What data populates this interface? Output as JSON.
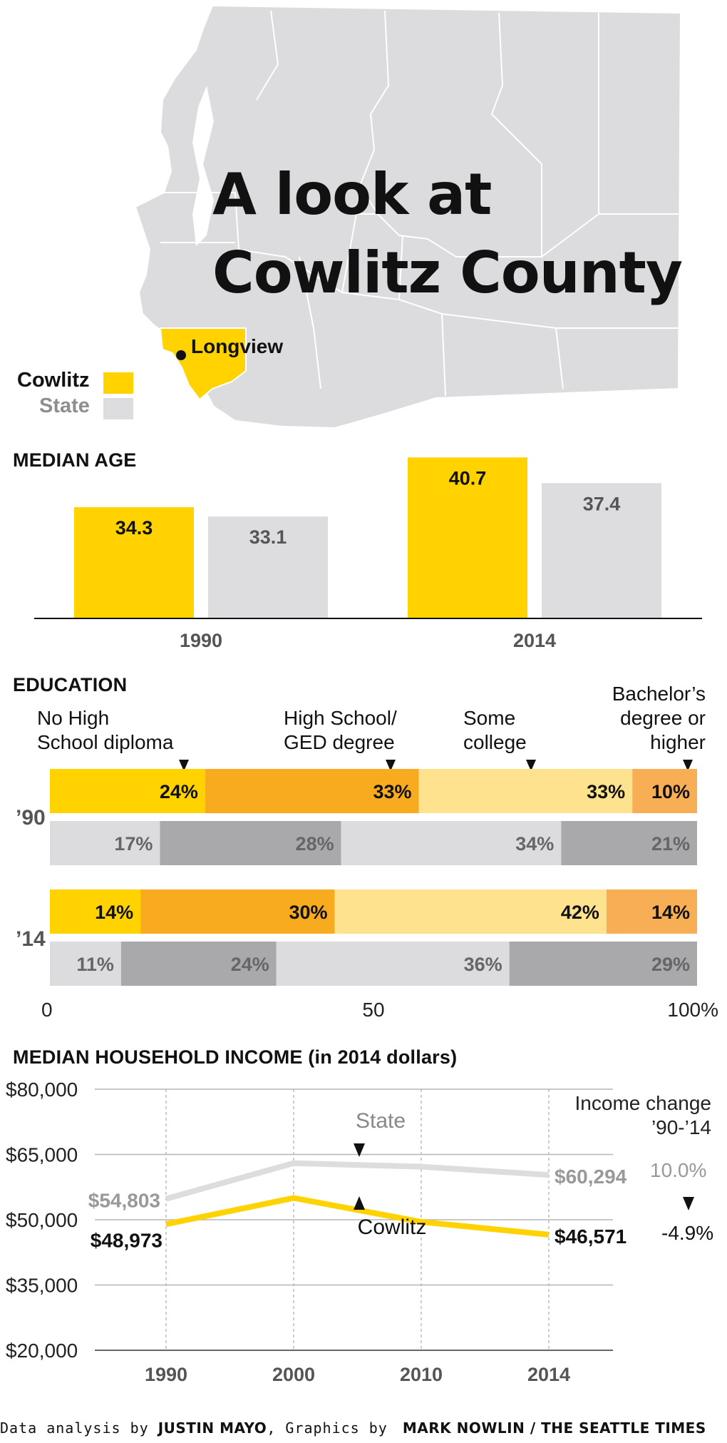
{
  "header": {
    "title_line1": "A look at",
    "title_line2": "Cowlitz County",
    "city_label": "Longview"
  },
  "legend": {
    "cowlitz_label": "Cowlitz",
    "state_label": "State"
  },
  "colors": {
    "cowlitz": "#FFD200",
    "state": "#DDDDE0",
    "hs_dark": "#F9AB1F",
    "some_college": "#FFE28E",
    "bachelor": "#F8AE55",
    "state_dark": "#A9A9AC",
    "state_light": "#DCDCDE",
    "map_fill": "#DCDCDE"
  },
  "median_age": {
    "title": "MEDIAN AGE"
  },
  "education": {
    "title": "EDUCATION",
    "cat_no_hs_line1": "No High",
    "cat_no_hs_line2": "School diploma",
    "cat_hs_line1": "High School/",
    "cat_hs_line2": "GED degree",
    "cat_some_line1": "Some",
    "cat_some_line2": "college",
    "cat_bach_line1": "Bachelor’s",
    "cat_bach_line2": "degree or",
    "cat_bach_line3": "higher",
    "row_90_label": "’90",
    "row_14_label": "’14",
    "axis_0": "0",
    "axis_50": "50",
    "axis_100": "100%"
  },
  "income": {
    "title": "MEDIAN HOUSEHOLD INCOME (in 2014 dollars)",
    "change_title_line1": "Income change",
    "change_title_line2": "’90-’14",
    "state_change": "10.0%",
    "cowlitz_change": "-4.9%",
    "state_series_label": "State",
    "cowlitz_series_label": "Cowlitz"
  },
  "credit": {
    "prefix": "Data analysis by ",
    "analyst": "JUSTIN MAYO",
    "middle": ", Graphics by ",
    "graphics": "MARK NOWLIN / THE SEATTLE TIMES"
  },
  "chart_data": [
    {
      "type": "bar",
      "title": "MEDIAN AGE",
      "categories": [
        "1990",
        "2014"
      ],
      "series": [
        {
          "name": "Cowlitz",
          "values": [
            34.3,
            40.7
          ],
          "labels": [
            "34.3",
            "40.7"
          ]
        },
        {
          "name": "State",
          "values": [
            33.1,
            37.4
          ],
          "labels": [
            "33.1",
            "37.4"
          ]
        }
      ],
      "ylim": [
        20,
        41
      ]
    },
    {
      "type": "bar",
      "stacked": true,
      "orientation": "horizontal",
      "title": "EDUCATION",
      "categories": [
        "No High School diploma",
        "High School/GED degree",
        "Some college",
        "Bachelor’s degree or higher"
      ],
      "rows": [
        {
          "group": "’90",
          "name": "Cowlitz",
          "values": [
            24,
            33,
            33,
            10
          ],
          "labels": [
            "24%",
            "33%",
            "33%",
            "10%"
          ]
        },
        {
          "group": "’90",
          "name": "State",
          "values": [
            17,
            28,
            34,
            21
          ],
          "labels": [
            "17%",
            "28%",
            "34%",
            "21%"
          ]
        },
        {
          "group": "’14",
          "name": "Cowlitz",
          "values": [
            14,
            30,
            42,
            14
          ],
          "labels": [
            "14%",
            "30%",
            "42%",
            "14%"
          ]
        },
        {
          "group": "’14",
          "name": "State",
          "values": [
            11,
            24,
            36,
            29
          ],
          "labels": [
            "11%",
            "24%",
            "36%",
            "29%"
          ]
        }
      ],
      "xlim": [
        0,
        100
      ],
      "xticks": [
        "0",
        "50",
        "100%"
      ]
    },
    {
      "type": "line",
      "title": "MEDIAN HOUSEHOLD INCOME (in 2014 dollars)",
      "x": [
        1990,
        2000,
        2010,
        2014
      ],
      "xticks": [
        "1990",
        "2000",
        "2010",
        "2014"
      ],
      "series": [
        {
          "name": "State",
          "values": [
            54803,
            63000,
            62200,
            60294
          ],
          "start_label": "$54,803",
          "end_label": "$60,294"
        },
        {
          "name": "Cowlitz",
          "values": [
            48973,
            55000,
            49500,
            46571
          ],
          "start_label": "$48,973",
          "end_label": "$46,571"
        }
      ],
      "ylim": [
        20000,
        80000
      ],
      "yticks": [
        20000,
        35000,
        50000,
        65000,
        80000
      ],
      "ytick_labels": [
        "$20,000",
        "$35,000",
        "$50,000",
        "$65,000",
        "$80,000"
      ]
    }
  ]
}
